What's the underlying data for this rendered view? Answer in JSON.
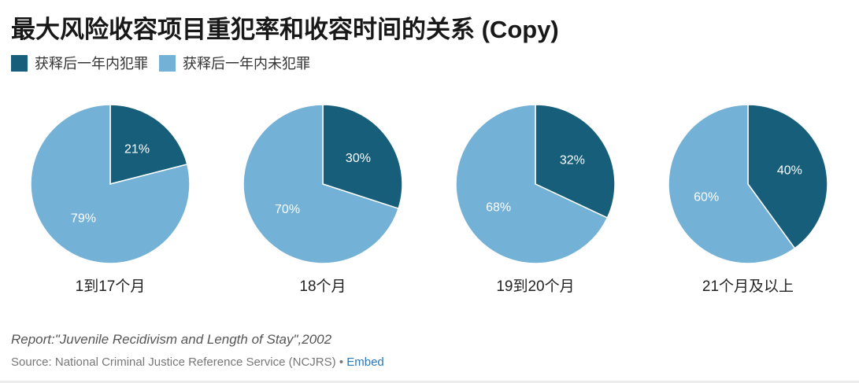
{
  "header": {
    "title": "最大风险收容项目重犯率和收容时间的关系 (Copy)"
  },
  "legend": {
    "items": [
      {
        "label": "获释后一年内犯罪",
        "color": "#175e7a"
      },
      {
        "label": "获释后一年内未犯罪",
        "color": "#73b1d6"
      }
    ]
  },
  "chart_data": {
    "type": "pie",
    "series_names": [
      "获释后一年内犯罪",
      "获释后一年内未犯罪"
    ],
    "colors": [
      "#175e7a",
      "#73b1d6"
    ],
    "pies": [
      {
        "label": "1到17个月",
        "values": [
          21,
          79
        ],
        "value_labels": [
          "21%",
          "79%"
        ]
      },
      {
        "label": "18个月",
        "values": [
          30,
          70
        ],
        "value_labels": [
          "30%",
          "70%"
        ]
      },
      {
        "label": "19到20个月",
        "values": [
          32,
          68
        ],
        "value_labels": [
          "32%",
          "68%"
        ]
      },
      {
        "label": "21个月及以上",
        "values": [
          40,
          60
        ],
        "value_labels": [
          "40%",
          "60%"
        ]
      }
    ]
  },
  "footer": {
    "note": "Report:\"Juvenile Recidivism and Length of Stay\",2002",
    "source": "Source: National Criminal Justice Reference Service (NCJRS)",
    "separator": "•",
    "embed_label": "Embed"
  }
}
